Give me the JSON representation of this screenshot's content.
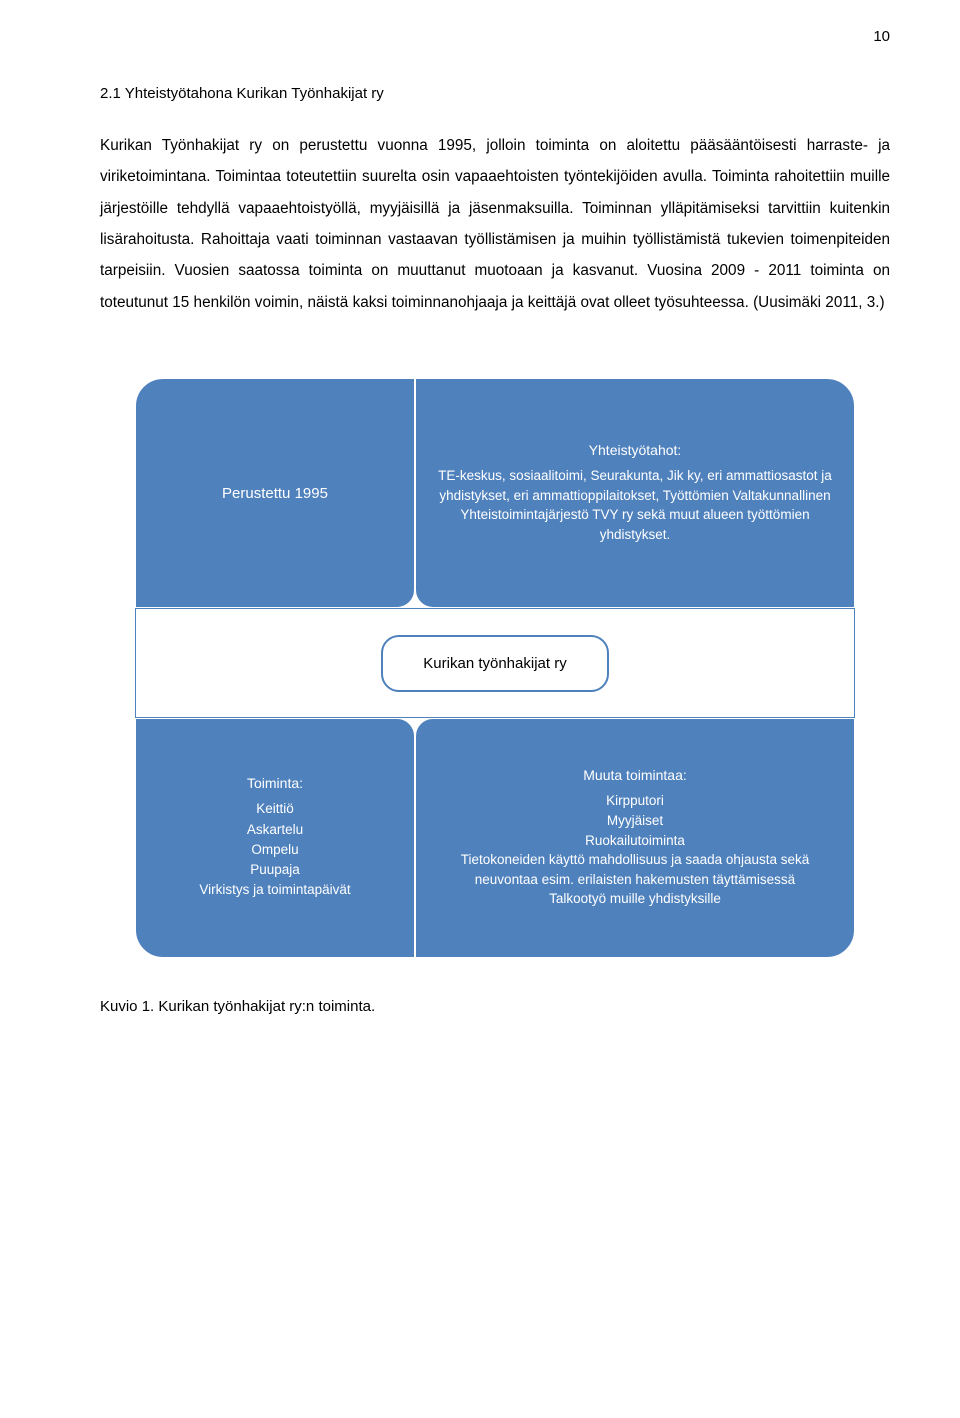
{
  "page_number": "10",
  "heading": "2.1 Yhteistyötahona Kurikan Työnhakijat ry",
  "body_text": "Kurikan Työnhakijat ry on perustettu vuonna 1995, jolloin toiminta on aloitettu pääsääntöisesti harraste- ja viriketoimintana. Toimintaa toteutettiin suurelta osin vapaaehtoisten työntekijöiden avulla. Toiminta rahoitettiin muille järjestöille tehdyllä vapaaehtoistyöllä, myyjäisillä ja jäsenmaksuilla. Toiminnan ylläpitämiseksi tarvittiin kuitenkin lisärahoitusta. Rahoittaja vaati toiminnan vastaavan työllistämisen ja muihin työllistämistä tukevien toimenpiteiden tarpeisiin. Vuosien saatossa toiminta on muuttanut muotoaan ja kasvanut. Vuosina 2009 - 2011 toiminta on toteutunut 15 henkilön voimin, näistä kaksi toiminnanohjaaja ja keittäjä ovat olleet työsuhteessa. (Uusimäki 2011, 3.)",
  "diagram": {
    "quad_tl": {
      "label": "Perustettu 1995"
    },
    "quad_tr": {
      "title": "Yhteistyötahot:",
      "text": "TE-keskus, sosiaalitoimi, Seurakunta, Jik ky, eri ammattiosastot ja yhdistykset, eri ammattioppilaitokset, Työttömien Valtakunnallinen Yhteistoimintajärjestö TVY ry sekä muut alueen työttömien yhdistykset."
    },
    "center": "Kurikan työnhakijat ry",
    "quad_bl": {
      "title": "Toiminta:",
      "items": [
        "Keittiö",
        "Askartelu",
        "Ompelu",
        "Puupaja",
        "Virkistys ja toimintapäivät"
      ]
    },
    "quad_br": {
      "title": "Muuta toimintaa:",
      "items": [
        "Kirpputori",
        "Myyjäiset",
        "Ruokailutoiminta",
        "Tietokoneiden käyttö mahdollisuus ja saada ohjausta sekä neuvontaa esim. erilaisten hakemusten täyttämisessä",
        "Talkootyö muille yhdistyksille"
      ]
    },
    "colors": {
      "quad_bg": "#4f81bd",
      "quad_text": "#ffffff",
      "center_border": "#4f81bd",
      "center_bg": "#ffffff"
    }
  },
  "caption": "Kuvio 1. Kurikan työnhakijat ry:n toiminta."
}
